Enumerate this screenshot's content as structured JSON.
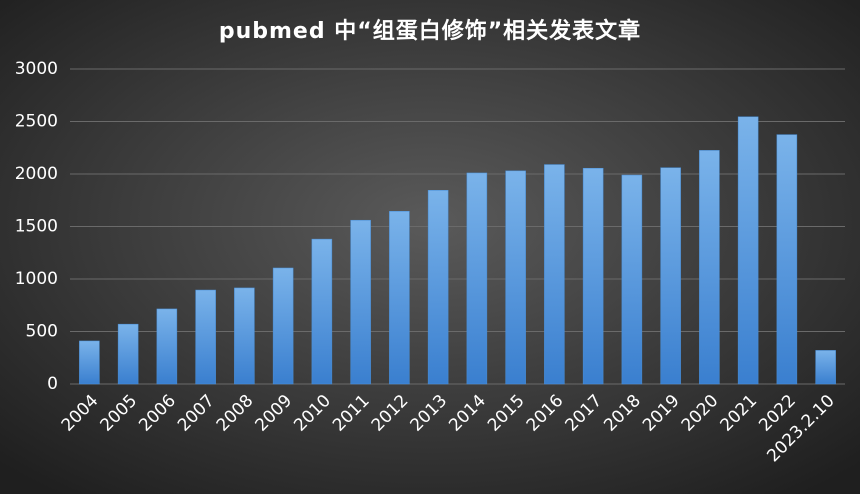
{
  "chart_data": {
    "type": "bar",
    "title": "pubmed 中“组蛋白修饰”相关发表文章",
    "categories": [
      "2004",
      "2005",
      "2006",
      "2007",
      "2008",
      "2009",
      "2010",
      "2011",
      "2012",
      "2013",
      "2014",
      "2015",
      "2016",
      "2017",
      "2018",
      "2019",
      "2020",
      "2021",
      "2022",
      "2023.2.10"
    ],
    "values": [
      410,
      570,
      715,
      895,
      915,
      1105,
      1380,
      1560,
      1645,
      1845,
      2010,
      2030,
      2090,
      2055,
      1990,
      2060,
      2225,
      2545,
      2375,
      320
    ],
    "color": "#4a90d9",
    "ylim": [
      0,
      3000
    ],
    "yticks": [
      0,
      500,
      1000,
      1500,
      2000,
      2500,
      3000
    ],
    "grid": true
  }
}
